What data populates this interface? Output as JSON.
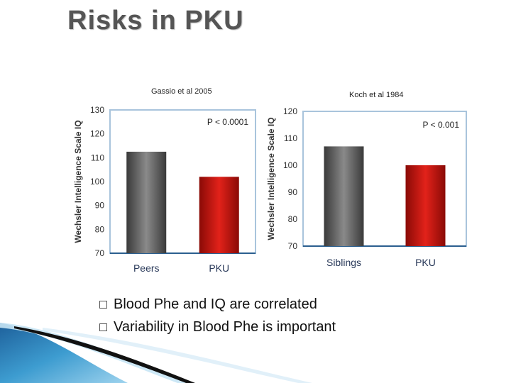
{
  "slide_title": "Risks in PKU",
  "bullets": [
    "Blood Phe and IQ are correlated",
    "Variability in Blood Phe is important"
  ],
  "chart_data": [
    {
      "type": "bar",
      "source": "Gassio et al 2005",
      "categories": [
        "Peers",
        "PKU"
      ],
      "values": [
        112.5,
        102
      ],
      "ylabel": "Wechsler Intelligence Scale IQ",
      "ylim": [
        70,
        130
      ],
      "yticks": [
        70,
        80,
        90,
        100,
        110,
        120,
        130
      ],
      "annotation": "P < 0.0001",
      "colors": [
        "#6a6a6a",
        "#c8150f"
      ]
    },
    {
      "type": "bar",
      "source": "Koch et al 1984",
      "categories": [
        "Siblings",
        "PKU"
      ],
      "values": [
        107,
        100
      ],
      "ylabel": "Wechsler Intelligence Scale IQ",
      "ylim": [
        70,
        120
      ],
      "yticks": [
        70,
        80,
        90,
        100,
        110,
        120
      ],
      "annotation": "P < 0.001",
      "colors": [
        "#6a6a6a",
        "#c8150f"
      ]
    }
  ]
}
